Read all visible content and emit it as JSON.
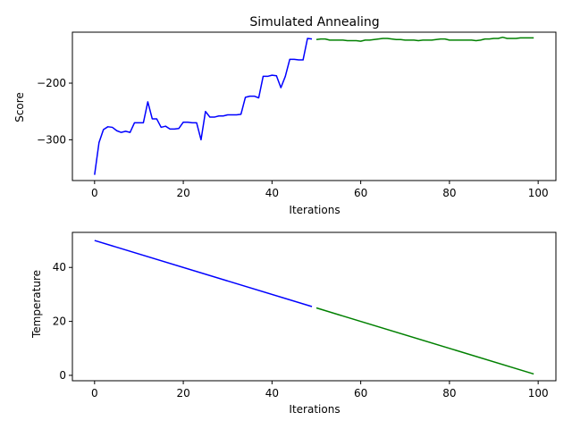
{
  "chart_data": [
    {
      "type": "line",
      "title": "Simulated Annealing",
      "xlabel": "Iterations",
      "ylabel": "Score",
      "xlim": [
        -5,
        104
      ],
      "ylim": [
        -372,
        -110
      ],
      "xticks": [
        0,
        20,
        40,
        60,
        80,
        100
      ],
      "yticks": [
        -300,
        -200
      ],
      "grid": false,
      "series": [
        {
          "color": "#0000ff",
          "x": [
            0,
            1,
            2,
            3,
            4,
            5,
            6,
            7,
            8,
            9,
            10,
            11,
            12,
            13,
            14,
            15,
            16,
            17,
            18,
            19,
            20,
            21,
            22,
            23,
            24,
            25,
            26,
            27,
            28,
            29,
            30,
            31,
            32,
            33,
            34,
            35,
            36,
            37,
            38,
            39,
            40,
            41,
            42,
            43,
            44,
            45,
            46,
            47,
            48,
            49
          ],
          "y": [
            -362,
            -305,
            -282,
            -277,
            -278,
            -284,
            -287,
            -285,
            -287,
            -270,
            -270,
            -270,
            -233,
            -263,
            -263,
            -278,
            -276,
            -281,
            -281,
            -280,
            -269,
            -269,
            -270,
            -270,
            -300,
            -250,
            -260,
            -260,
            -258,
            -258,
            -256,
            -256,
            -256,
            -255,
            -225,
            -223,
            -223,
            -226,
            -188,
            -188,
            -186,
            -187,
            -208,
            -188,
            -158,
            -158,
            -159,
            -159,
            -121,
            -122
          ]
        },
        {
          "color": "#008000",
          "x": [
            50,
            51,
            52,
            53,
            54,
            55,
            56,
            57,
            58,
            59,
            60,
            61,
            62,
            63,
            64,
            65,
            66,
            67,
            68,
            69,
            70,
            71,
            72,
            73,
            74,
            75,
            76,
            77,
            78,
            79,
            80,
            81,
            82,
            83,
            84,
            85,
            86,
            87,
            88,
            89,
            90,
            91,
            92,
            93,
            94,
            95,
            96,
            97,
            98,
            99
          ],
          "y": [
            -123,
            -122,
            -122,
            -124,
            -124,
            -124,
            -124,
            -125,
            -125,
            -125,
            -126,
            -124,
            -124,
            -123,
            -122,
            -121,
            -121,
            -122,
            -123,
            -123,
            -124,
            -124,
            -124,
            -125,
            -124,
            -124,
            -124,
            -123,
            -122,
            -122,
            -124,
            -124,
            -124,
            -124,
            -124,
            -124,
            -125,
            -124,
            -122,
            -122,
            -121,
            -121,
            -119,
            -121,
            -121,
            -121,
            -120,
            -120,
            -120,
            -120
          ]
        }
      ]
    },
    {
      "type": "line",
      "title": "",
      "xlabel": "Iterations",
      "ylabel": "Temperature",
      "xlim": [
        -5,
        104
      ],
      "ylim": [
        -2,
        53
      ],
      "xticks": [
        0,
        20,
        40,
        60,
        80,
        100
      ],
      "yticks": [
        0,
        20,
        40
      ],
      "grid": false,
      "series": [
        {
          "color": "#0000ff",
          "x": [
            0,
            49
          ],
          "y": [
            50,
            25.5
          ]
        },
        {
          "color": "#008000",
          "x": [
            50,
            99
          ],
          "y": [
            25,
            0.5
          ]
        }
      ]
    }
  ]
}
